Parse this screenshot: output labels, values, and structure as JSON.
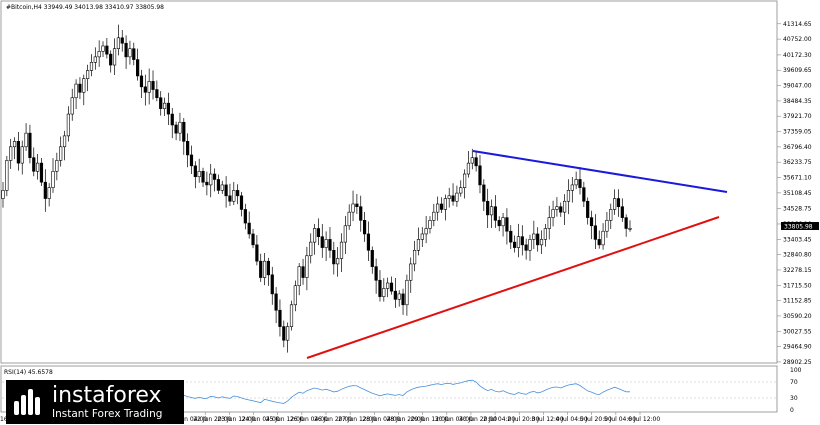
{
  "header": {
    "instrument": "#Bitcoin,H4",
    "ohlc": "33949.49 34013.98 33410.97 33805.98"
  },
  "indicator": {
    "label": "RSI(14) 45.6578",
    "levels": [
      "100",
      "70",
      "30",
      "0"
    ]
  },
  "watermark": {
    "brand": "instaforex",
    "tagline": "Instant Forex Trading"
  },
  "colors": {
    "resistance_line": "#1a1adc",
    "support_line": "#e01010",
    "rsi_line": "#4a90d9",
    "candle": "#000000",
    "price_marker": "#000000"
  },
  "chart_data": {
    "type": "candlestick",
    "ylim": [
      28900,
      41600
    ],
    "price_ticks": [
      "41314.65",
      "40752.00",
      "40172.30",
      "39609.65",
      "39047.00",
      "38484.35",
      "37921.70",
      "37359.05",
      "36796.40",
      "36233.75",
      "35671.10",
      "35108.45",
      "34528.75",
      "33966.10",
      "33403.45",
      "32840.80",
      "32278.15",
      "31715.50",
      "31152.85",
      "30590.20",
      "30027.55",
      "29464.90",
      "28902.25"
    ],
    "current_price": "33805.98",
    "time_labels": [
      "16 Jun 20:00",
      "17 Jun 12:00",
      "18 Jun 04:00",
      "18 Jun 20:00",
      "20 Jun 04:00",
      "20 Jun 20:00",
      "21 Jun 12:00",
      "22 Jun 04:00",
      "22 Jun 20:00",
      "23 Jun 12:00",
      "24 Jun 04:00",
      "25 Jun 12:00",
      "26 Jun 04:00",
      "26 Jun 20:00",
      "27 Jun 12:00",
      "28 Jun 04:00",
      "28 Jun 20:00",
      "29 Jun 12:00",
      "30 Jun 04:00",
      "30 Jun 20:00",
      "2 Jul 04:00",
      "2 Jul 20:00",
      "3 Jul 12:00",
      "4 Jul 04:00",
      "5 Jul 20:00",
      "5 Jul 04:00",
      "6 Jul 12:00"
    ],
    "closes": [
      35200,
      36300,
      36800,
      37000,
      36200,
      36800,
      37300,
      36400,
      35900,
      36200,
      35500,
      34900,
      35300,
      35900,
      36300,
      36800,
      37200,
      38000,
      38600,
      39100,
      38800,
      39300,
      39600,
      39900,
      40100,
      40300,
      40500,
      40200,
      39800,
      40400,
      40800,
      40600,
      40100,
      40400,
      40000,
      39400,
      39000,
      38800,
      39200,
      38900,
      38600,
      38200,
      38400,
      38000,
      37600,
      37300,
      37700,
      37000,
      36500,
      36100,
      35700,
      35900,
      35500,
      35400,
      35800,
      35600,
      35200,
      35400,
      35000,
      34800,
      35200,
      35000,
      34500,
      34000,
      33600,
      33200,
      32600,
      32000,
      32600,
      32100,
      31400,
      30800,
      30200,
      29700,
      30200,
      31000,
      31700,
      32400,
      32000,
      32800,
      33300,
      33800,
      33500,
      33100,
      33400,
      33000,
      32500,
      32700,
      33300,
      33900,
      34400,
      34700,
      34600,
      34100,
      33600,
      33000,
      32400,
      31900,
      31300,
      31600,
      31800,
      31500,
      31200,
      31400,
      31000,
      31900,
      32500,
      33000,
      33400,
      33600,
      33800,
      34100,
      34400,
      34700,
      34500,
      34900,
      35000,
      34800,
      35100,
      35300,
      35800,
      36200,
      36400,
      36100,
      35400,
      34800,
      34300,
      34600,
      34100,
      33900,
      34200,
      33700,
      33300,
      33100,
      33500,
      33200,
      33000,
      33400,
      33600,
      33200,
      33400,
      33800,
      34200,
      34500,
      34600,
      34400,
      34800,
      35200,
      35400,
      35600,
      35300,
      34800,
      34200,
      33900,
      33400,
      33200,
      33700,
      34100,
      34500,
      34900,
      34600,
      34200,
      33800,
      33806
    ]
  }
}
